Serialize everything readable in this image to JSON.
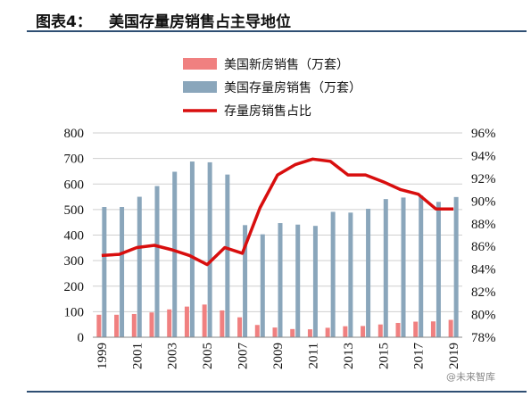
{
  "figure": {
    "label": "图表4：",
    "title": "美国存量房销售占主导地位",
    "watermark": "@未来智库"
  },
  "colors": {
    "new_home": "#f08080",
    "existing_home": "#8aa6bb",
    "ratio": "#d80e0e",
    "rule": "#2f4f73"
  },
  "chart_data": {
    "type": "bar",
    "x": [
      1999,
      2000,
      2001,
      2002,
      2003,
      2004,
      2005,
      2006,
      2007,
      2008,
      2009,
      2010,
      2011,
      2012,
      2013,
      2014,
      2015,
      2016,
      2017,
      2018,
      2019
    ],
    "x_tick_labels": [
      "1999",
      "2001",
      "2003",
      "2005",
      "2007",
      "2009",
      "2011",
      "2013",
      "2015",
      "2017",
      "2019"
    ],
    "series": [
      {
        "name": "美国新房销售（万套）",
        "type": "bar",
        "axis": "left",
        "values": [
          88,
          88,
          91,
          97,
          109,
          120,
          128,
          105,
          78,
          48,
          38,
          32,
          31,
          37,
          43,
          44,
          50,
          56,
          61,
          62,
          68
        ]
      },
      {
        "name": "美国存量房销售（万套）",
        "type": "bar",
        "axis": "left",
        "values": [
          510,
          510,
          550,
          592,
          648,
          688,
          685,
          637,
          439,
          403,
          447,
          441,
          436,
          491,
          488,
          503,
          541,
          547,
          555,
          530,
          549
        ]
      },
      {
        "name": "存量房销售占比",
        "type": "line",
        "axis": "right",
        "values": [
          85.2,
          85.3,
          85.9,
          86.1,
          85.7,
          85.2,
          84.4,
          85.9,
          85.4,
          89.4,
          92.3,
          93.2,
          93.7,
          93.5,
          92.3,
          92.3,
          91.7,
          91.0,
          90.6,
          89.3,
          89.3
        ]
      }
    ],
    "y_left": {
      "min": 0,
      "max": 800,
      "ticks": [
        0,
        100,
        200,
        300,
        400,
        500,
        600,
        700,
        800
      ]
    },
    "y_right": {
      "min": 78,
      "max": 96,
      "ticks": [
        "78%",
        "80%",
        "82%",
        "84%",
        "86%",
        "88%",
        "90%",
        "92%",
        "94%",
        "96%"
      ]
    },
    "grid": "horizontal",
    "legend": "top-left"
  }
}
